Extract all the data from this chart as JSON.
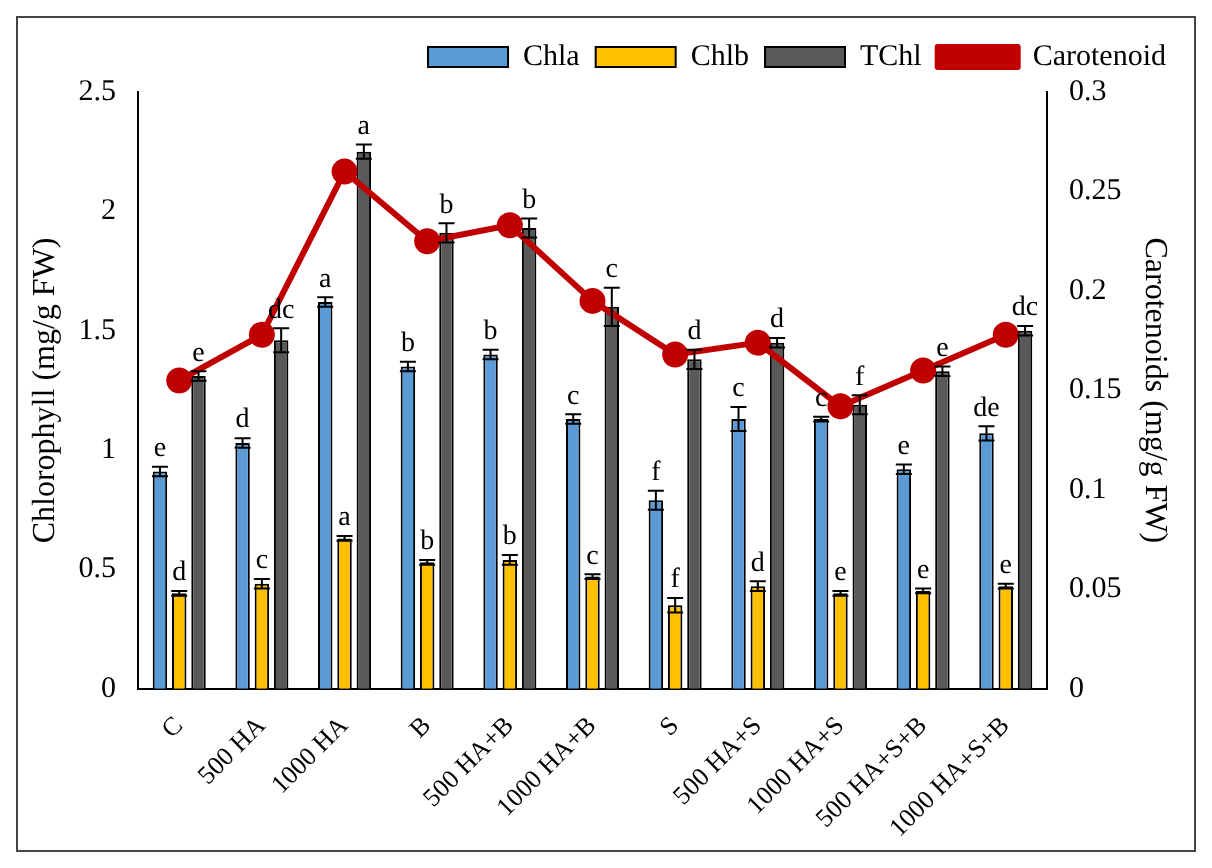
{
  "chart_data": {
    "type": "bar",
    "categories": [
      "C",
      "500 HA",
      "1000 HA",
      "B",
      "500 HA+B",
      "1000 HA+B",
      "S",
      "500 HA+S",
      "1000 HA+S",
      "500 HA+S+B",
      "1000 HA+S+B"
    ],
    "series": [
      {
        "name": "Chla",
        "color": "#5b9bd5",
        "values": [
          0.91,
          1.03,
          1.62,
          1.35,
          1.4,
          1.13,
          0.79,
          1.13,
          1.13,
          0.92,
          1.07
        ],
        "errors": [
          0.02,
          0.02,
          0.02,
          0.02,
          0.02,
          0.02,
          0.04,
          0.05,
          0.01,
          0.02,
          0.03
        ],
        "value_labels": [
          "e",
          "d",
          "a",
          "b",
          "b",
          "c",
          "f",
          "c",
          "c",
          "e",
          "de"
        ]
      },
      {
        "name": "Chlb",
        "color": "#ffc000",
        "values": [
          0.4,
          0.44,
          0.63,
          0.53,
          0.54,
          0.47,
          0.35,
          0.43,
          0.4,
          0.41,
          0.43
        ],
        "errors": [
          0.01,
          0.02,
          0.01,
          0.01,
          0.02,
          0.01,
          0.03,
          0.02,
          0.01,
          0.01,
          0.01
        ],
        "value_labels": [
          "d",
          "c",
          "a",
          "b",
          "b",
          "c",
          "f",
          "d",
          "e",
          "e",
          "e"
        ]
      },
      {
        "name": "TChl",
        "color": "#595959",
        "values": [
          1.31,
          1.46,
          2.25,
          1.91,
          1.93,
          1.6,
          1.38,
          1.45,
          1.19,
          1.33,
          1.5
        ],
        "errors": [
          0.02,
          0.05,
          0.03,
          0.04,
          0.04,
          0.08,
          0.04,
          0.02,
          0.04,
          0.02,
          0.02
        ],
        "value_labels": [
          "e",
          "dc",
          "a",
          "b",
          "b",
          "c",
          "d",
          "d",
          "f",
          "e",
          "dc"
        ]
      },
      {
        "name": "Carotenoid",
        "type": "line",
        "axis": "y2",
        "color": "#c00000",
        "values": [
          0.155,
          0.178,
          0.26,
          0.225,
          0.233,
          0.195,
          0.168,
          0.174,
          0.142,
          0.16,
          0.178
        ]
      }
    ],
    "ylabel": "Chlorophyll (mg/g FW)",
    "y2label": "Carotenoids (mg/g FW)",
    "ylim": [
      0,
      2.5
    ],
    "yticks": [
      0,
      0.5,
      1,
      1.5,
      2,
      2.5
    ],
    "y2lim": [
      0,
      0.3
    ],
    "y2ticks": [
      0,
      0.05,
      0.1,
      0.15,
      0.2,
      0.25,
      0.3
    ],
    "legend": "top",
    "grid": false,
    "marker": "circle",
    "line_style": "solid"
  }
}
